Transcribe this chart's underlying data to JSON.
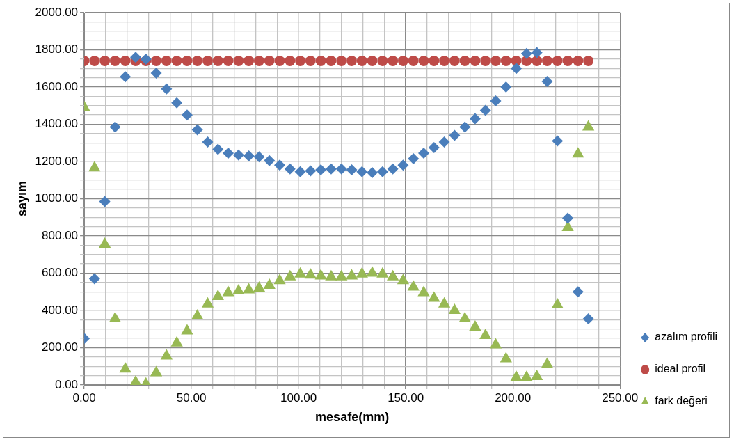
{
  "chart_data": {
    "type": "scatter",
    "xlabel": "mesafe(mm)",
    "ylabel": "sayım",
    "legend": "right",
    "grid": true,
    "x": [
      0,
      4.8,
      9.6,
      14.4,
      19.2,
      24,
      28.8,
      33.6,
      38.4,
      43.2,
      48,
      52.8,
      57.6,
      62.4,
      67.2,
      72,
      76.8,
      81.6,
      86.4,
      91.2,
      96,
      100.8,
      105.6,
      110.4,
      115.2,
      120,
      124.8,
      129.6,
      134.4,
      139.2,
      144,
      148.8,
      153.6,
      158.4,
      163.2,
      168,
      172.8,
      177.6,
      182.4,
      187.2,
      192,
      196.8,
      201.6,
      206.4,
      211.2,
      216,
      220.8,
      225.6,
      230.4,
      235.2
    ],
    "xlim": [
      0,
      250
    ],
    "xticks": [
      {
        "value": 0,
        "label": "0.00"
      },
      {
        "value": 10,
        "label": null
      },
      {
        "value": 20,
        "label": null
      },
      {
        "value": 30,
        "label": null
      },
      {
        "value": 40,
        "label": null
      },
      {
        "value": 50,
        "label": "50.00"
      },
      {
        "value": 60,
        "label": null
      },
      {
        "value": 70,
        "label": null
      },
      {
        "value": 80,
        "label": null
      },
      {
        "value": 90,
        "label": null
      },
      {
        "value": 100,
        "label": "100.00"
      },
      {
        "value": 110,
        "label": null
      },
      {
        "value": 120,
        "label": null
      },
      {
        "value": 130,
        "label": null
      },
      {
        "value": 140,
        "label": null
      },
      {
        "value": 150,
        "label": "150.00"
      },
      {
        "value": 160,
        "label": null
      },
      {
        "value": 170,
        "label": null
      },
      {
        "value": 180,
        "label": null
      },
      {
        "value": 190,
        "label": null
      },
      {
        "value": 200,
        "label": "200.00"
      },
      {
        "value": 210,
        "label": null
      },
      {
        "value": 220,
        "label": null
      },
      {
        "value": 230,
        "label": null
      },
      {
        "value": 240,
        "label": null
      },
      {
        "value": 250,
        "label": "250.00"
      }
    ],
    "ylim": [
      0,
      2000
    ],
    "yticks": [
      {
        "value": 0,
        "label": "0.00"
      },
      {
        "value": 50,
        "label": null
      },
      {
        "value": 100,
        "label": null
      },
      {
        "value": 150,
        "label": null
      },
      {
        "value": 200,
        "label": "200.00"
      },
      {
        "value": 250,
        "label": null
      },
      {
        "value": 300,
        "label": null
      },
      {
        "value": 350,
        "label": null
      },
      {
        "value": 400,
        "label": "400.00"
      },
      {
        "value": 450,
        "label": null
      },
      {
        "value": 500,
        "label": null
      },
      {
        "value": 550,
        "label": null
      },
      {
        "value": 600,
        "label": "600.00"
      },
      {
        "value": 650,
        "label": null
      },
      {
        "value": 700,
        "label": null
      },
      {
        "value": 750,
        "label": null
      },
      {
        "value": 800,
        "label": "800.00"
      },
      {
        "value": 850,
        "label": null
      },
      {
        "value": 900,
        "label": null
      },
      {
        "value": 950,
        "label": null
      },
      {
        "value": 1000,
        "label": "1000.00"
      },
      {
        "value": 1050,
        "label": null
      },
      {
        "value": 1100,
        "label": null
      },
      {
        "value": 1150,
        "label": null
      },
      {
        "value": 1200,
        "label": "1200.00"
      },
      {
        "value": 1250,
        "label": null
      },
      {
        "value": 1300,
        "label": null
      },
      {
        "value": 1350,
        "label": null
      },
      {
        "value": 1400,
        "label": "1400.00"
      },
      {
        "value": 1450,
        "label": null
      },
      {
        "value": 1500,
        "label": null
      },
      {
        "value": 1550,
        "label": null
      },
      {
        "value": 1600,
        "label": "1600.00"
      },
      {
        "value": 1650,
        "label": null
      },
      {
        "value": 1700,
        "label": null
      },
      {
        "value": 1750,
        "label": null
      },
      {
        "value": 1800,
        "label": "1800.00"
      },
      {
        "value": 1850,
        "label": null
      },
      {
        "value": 1900,
        "label": null
      },
      {
        "value": 1950,
        "label": null
      },
      {
        "value": 2000,
        "label": "2000.00"
      }
    ],
    "series": [
      {
        "name": "azalım profili",
        "color": "#4a7ebb",
        "marker": "diamond",
        "values": [
          250,
          570,
          985,
          1385,
          1655,
          1760,
          1750,
          1675,
          1590,
          1515,
          1450,
          1370,
          1305,
          1265,
          1245,
          1235,
          1230,
          1225,
          1205,
          1180,
          1160,
          1145,
          1150,
          1155,
          1160,
          1160,
          1155,
          1145,
          1140,
          1145,
          1160,
          1180,
          1215,
          1245,
          1275,
          1305,
          1340,
          1385,
          1430,
          1475,
          1525,
          1600,
          1700,
          1780,
          1785,
          1630,
          1310,
          895,
          500,
          355
        ]
      },
      {
        "name": "ideal profil",
        "color": "#be4b48",
        "marker": "circle",
        "values": [
          1740,
          1740,
          1740,
          1740,
          1740,
          1740,
          1740,
          1740,
          1740,
          1740,
          1740,
          1740,
          1740,
          1740,
          1740,
          1740,
          1740,
          1740,
          1740,
          1740,
          1740,
          1740,
          1740,
          1740,
          1740,
          1740,
          1740,
          1740,
          1740,
          1740,
          1740,
          1740,
          1740,
          1740,
          1740,
          1740,
          1740,
          1740,
          1740,
          1740,
          1740,
          1740,
          1740,
          1740,
          1740,
          1740,
          1740,
          1740,
          1740,
          1740
        ]
      },
      {
        "name": "fark değeri",
        "color": "#98b954",
        "marker": "triangle",
        "values": [
          1490,
          1165,
          755,
          355,
          85,
          15,
          5,
          65,
          155,
          225,
          290,
          370,
          435,
          475,
          495,
          505,
          510,
          520,
          535,
          560,
          580,
          595,
          590,
          585,
          580,
          580,
          585,
          595,
          600,
          595,
          580,
          560,
          525,
          495,
          465,
          435,
          400,
          355,
          310,
          265,
          215,
          140,
          40,
          40,
          45,
          110,
          430,
          845,
          1240,
          1385
        ]
      }
    ]
  }
}
